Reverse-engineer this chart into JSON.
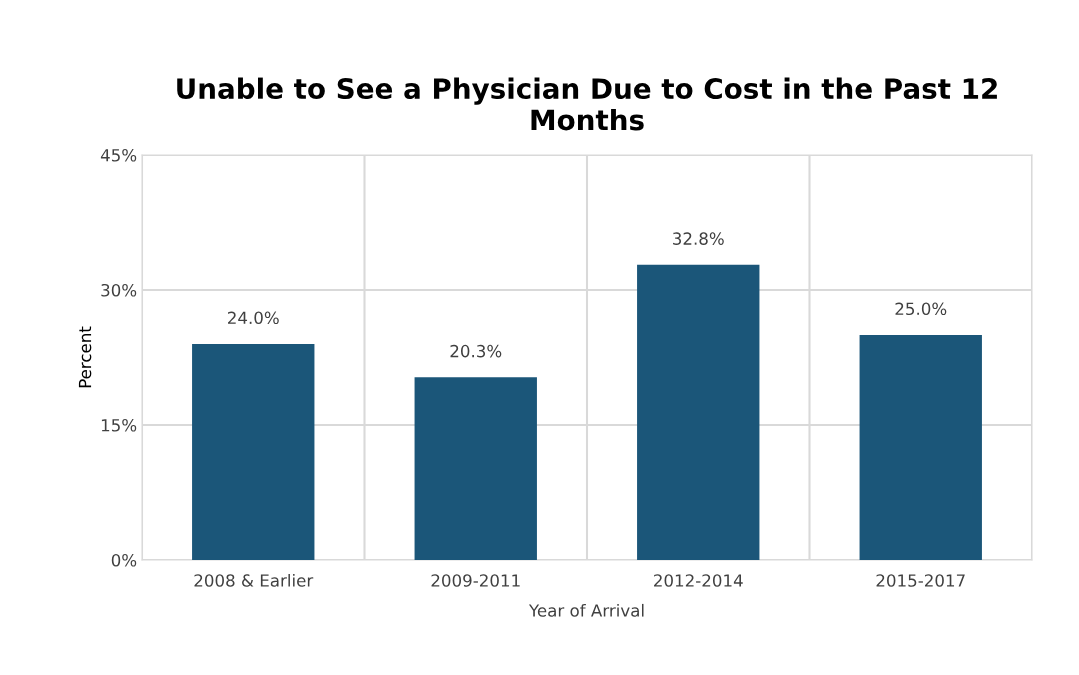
{
  "chart_data": {
    "type": "bar",
    "title": "Unable to See a Physician Due to Cost in the Past 12\nMonths",
    "xlabel": "Year of Arrival",
    "ylabel": "Percent",
    "categories": [
      "2008 & Earlier",
      "2009-2011",
      "2012-2014",
      "2015-2017"
    ],
    "values": [
      24.0,
      20.3,
      32.8,
      25.0
    ],
    "color": "#1b5679",
    "value_labels": [
      "24.0%",
      "20.3%",
      "32.8%",
      "25.0%"
    ],
    "ylim": [
      0,
      45
    ],
    "yticks": [
      {
        "value": 0,
        "label": "0%"
      },
      {
        "value": 15,
        "label": "15%"
      },
      {
        "value": 30,
        "label": "30%"
      },
      {
        "value": 45,
        "label": "45%"
      }
    ],
    "grid": true
  }
}
